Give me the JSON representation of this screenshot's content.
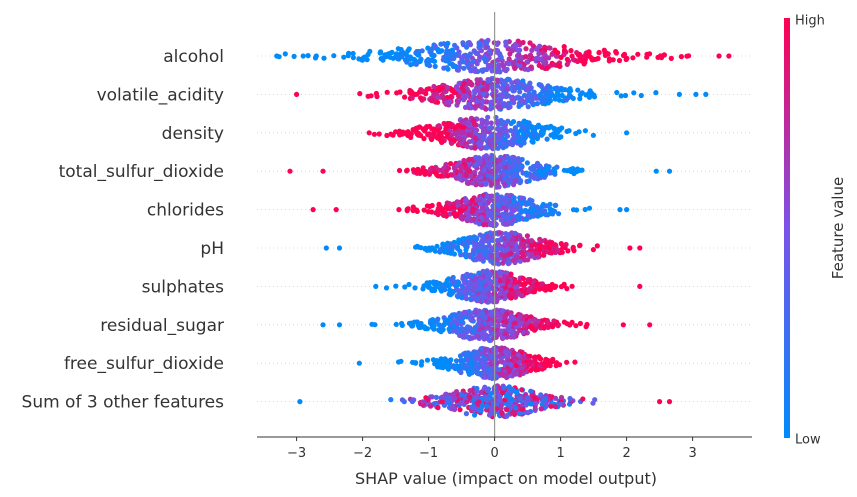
{
  "chart_data": {
    "type": "scatter",
    "subtype": "beeswarm",
    "xlabel": "SHAP value (impact on model output)",
    "xlim": [
      -3.6,
      3.9
    ],
    "xticks": [
      -3,
      -2,
      -1,
      0,
      1,
      2,
      3
    ],
    "xtick_labels": [
      "−3",
      "−2",
      "−1",
      "0",
      "1",
      "2",
      "3"
    ],
    "colorbar": {
      "label": "Feature value",
      "high_label": "High",
      "low_label": "Low",
      "low_color": "#008bfb",
      "high_color": "#ff0052"
    },
    "features": [
      {
        "name": "alcohol",
        "min": -3.35,
        "max": 3.55,
        "center": 0.0,
        "spread": 1.05,
        "high_side": "right",
        "outliers": [
          -3.3,
          -2.9,
          3.4,
          3.55
        ]
      },
      {
        "name": "volatile_acidity",
        "min": -3.0,
        "max": 3.2,
        "center": 0.0,
        "spread": 0.7,
        "high_side": "left",
        "outliers": [
          -3.0,
          2.8,
          3.05,
          3.2
        ]
      },
      {
        "name": "density",
        "min": -1.9,
        "max": 2.0,
        "center": -0.1,
        "spread": 0.65,
        "high_side": "left",
        "outliers": [
          -1.9,
          2.0
        ]
      },
      {
        "name": "total_sulfur_dioxide",
        "min": -3.1,
        "max": 2.65,
        "center": 0.0,
        "spread": 0.5,
        "high_side": "left",
        "outliers": [
          -3.1,
          -2.6,
          2.45,
          2.65
        ]
      },
      {
        "name": "chlorides",
        "min": -2.75,
        "max": 2.0,
        "center": 0.0,
        "spread": 0.5,
        "high_side": "left",
        "outliers": [
          -2.75,
          -2.4,
          1.9,
          2.0
        ]
      },
      {
        "name": "pH",
        "min": -2.55,
        "max": 2.2,
        "center": 0.1,
        "spread": 0.5,
        "high_side": "right",
        "outliers": [
          -2.55,
          -2.35,
          2.05,
          2.2
        ]
      },
      {
        "name": "sulphates",
        "min": -1.8,
        "max": 2.2,
        "center": -0.1,
        "spread": 0.45,
        "high_side": "right",
        "outliers": [
          -1.8,
          2.2
        ]
      },
      {
        "name": "residual_sugar",
        "min": -2.6,
        "max": 2.35,
        "center": -0.1,
        "spread": 0.5,
        "high_side": "right",
        "outliers": [
          -2.6,
          -2.35,
          1.95,
          2.35
        ]
      },
      {
        "name": "free_sulfur_dioxide",
        "min": -2.05,
        "max": 1.7,
        "center": 0.0,
        "spread": 0.45,
        "high_side": "right",
        "outliers": [
          -2.05
        ]
      },
      {
        "name": "Sum of 3 other features",
        "min": -2.95,
        "max": 2.65,
        "center": 0.0,
        "spread": 0.55,
        "high_side": "mixed",
        "outliers": [
          -2.95,
          2.5,
          2.65
        ]
      }
    ]
  }
}
